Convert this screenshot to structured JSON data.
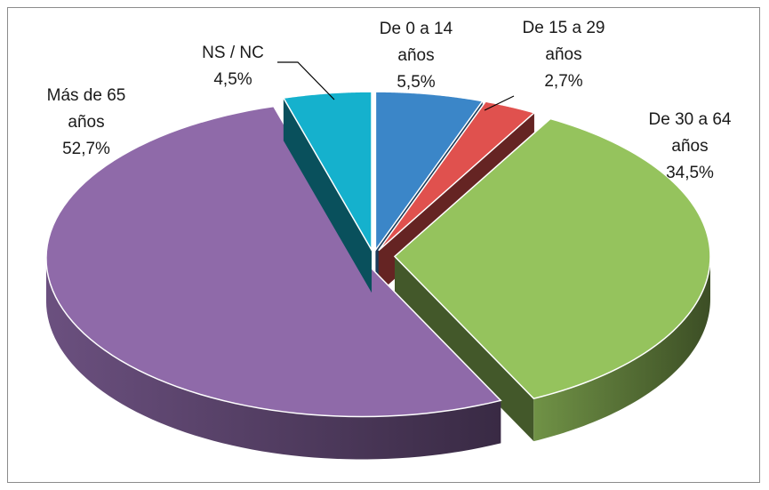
{
  "chart_data": {
    "type": "pie",
    "categories": [
      "De 0 a 14 años",
      "De 15 a 29 años",
      "De 30 a 64 años",
      "Más de 65 años",
      "NS / NC"
    ],
    "values": [
      5.5,
      2.7,
      34.5,
      52.7,
      4.5
    ],
    "value_labels": [
      "5,5%",
      "2,7%",
      "34,5%",
      "52,7%",
      "4,5%"
    ],
    "colors": [
      "#3b86c8",
      "#e0514e",
      "#95c35d",
      "#8f6aa9",
      "#15b1cd"
    ]
  }
}
